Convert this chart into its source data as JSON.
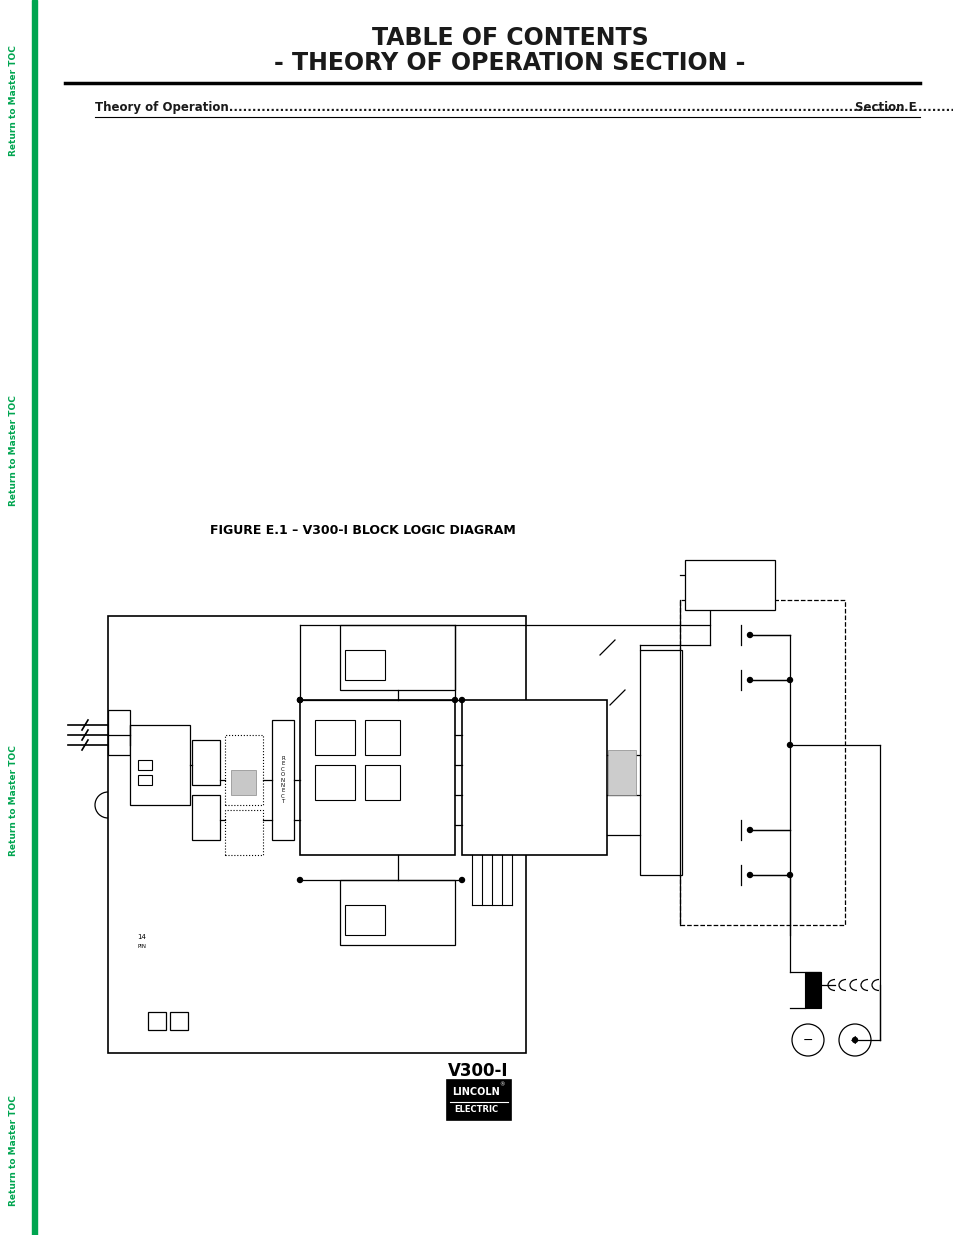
{
  "title_line1": "TABLE OF CONTENTS",
  "title_line2": "- THEORY OF OPERATION SECTION -",
  "toc_entry": "Theory of Operation",
  "toc_dots": "..............................................................................................................................................................",
  "toc_section": "Section E",
  "figure_caption": "FIGURE E.1 – V300-I BLOCK LOGIC DIAGRAM",
  "product_name": "V300-I",
  "sidebar_color": "#00a550",
  "background_color": "#ffffff",
  "title_color": "#1a1a1a",
  "sidebar_labels": [
    [
      14,
      1190,
      "Return to Master TOC"
    ],
    [
      14,
      840,
      "Return to Master TOC"
    ],
    [
      14,
      490,
      "Return to Master TOC"
    ],
    [
      14,
      140,
      "Return to Master TOC"
    ]
  ]
}
